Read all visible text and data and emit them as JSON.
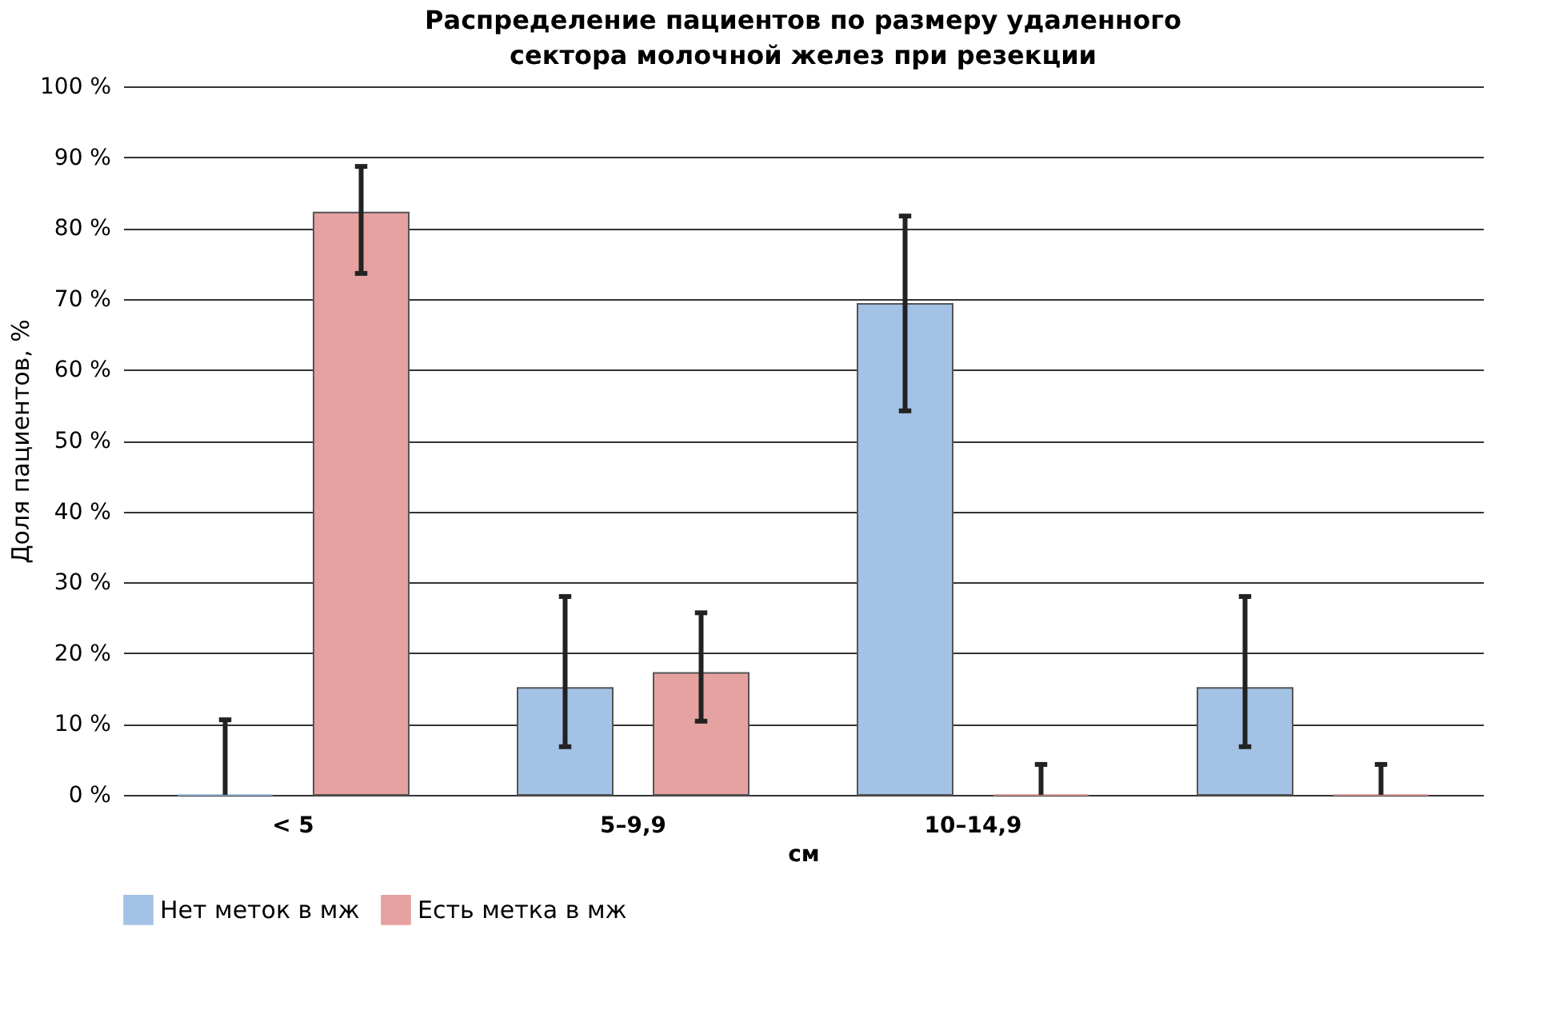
{
  "chart_data": {
    "type": "bar",
    "title": "Распределение пациентов по размеру удаленного сектора молочной желез при резекции",
    "xlabel": "см",
    "ylabel": "Доля пациентов, %",
    "categories": [
      "< 5",
      "5–9,9",
      "10–14,9",
      null
    ],
    "series": [
      {
        "name": "Нет меток в мж",
        "color": "#a3c2e6",
        "values": [
          0,
          15.1,
          69.3,
          15.1
        ],
        "errors": [
          [
            0,
            10.6
          ],
          [
            6.8,
            28.0
          ],
          [
            54.2,
            81.7
          ],
          [
            6.8,
            28.0
          ]
        ]
      },
      {
        "name": "Есть метка в мж",
        "color": "#e6a1a1",
        "values": [
          82.2,
          17.2,
          0,
          0
        ],
        "errors": [
          [
            73.6,
            88.7
          ],
          [
            10.4,
            25.7
          ],
          [
            0,
            4.3
          ],
          [
            0,
            4.3
          ]
        ]
      }
    ],
    "ylim": [
      0,
      100
    ],
    "yticks": [
      {
        "value": 0,
        "label": "0 %"
      },
      {
        "value": 10,
        "label": "10 %"
      },
      {
        "value": 20,
        "label": "20 %"
      },
      {
        "value": 30,
        "label": "30 %"
      },
      {
        "value": 40,
        "label": "40 %"
      },
      {
        "value": 50,
        "label": "50 %"
      },
      {
        "value": 60,
        "label": "60 %"
      },
      {
        "value": 70,
        "label": "70 %"
      },
      {
        "value": 80,
        "label": "80 %"
      },
      {
        "value": 90,
        "label": "90 %"
      },
      {
        "value": 100,
        "label": "100 %"
      }
    ],
    "grid": "y",
    "legend": "bottom"
  }
}
